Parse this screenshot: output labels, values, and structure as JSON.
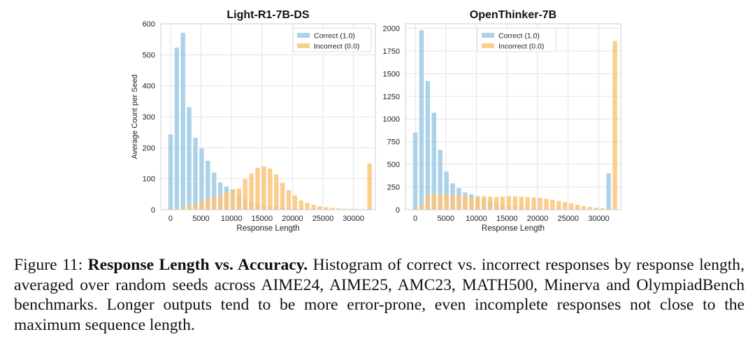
{
  "colors": {
    "correct": "#9ecae6",
    "incorrect": "#fbc57a",
    "grid": "#e3e3e3",
    "axis": "#666666",
    "text": "#222222"
  },
  "chart_data": [
    {
      "type": "bar",
      "title": "Light-R1-7B-DS",
      "xlabel": "Response Length",
      "ylabel": "Average Count per Seed",
      "xlim": [
        -1600,
        33600
      ],
      "ylim": [
        0,
        600
      ],
      "xticks": [
        0,
        5000,
        10000,
        15000,
        20000,
        25000,
        30000
      ],
      "xtick_labels": [
        "0",
        "5000",
        "10000",
        "15000",
        "20000",
        "25000",
        "30000"
      ],
      "yticks": [
        0,
        100,
        200,
        300,
        400,
        500,
        600
      ],
      "ytick_labels": [
        "0",
        "100",
        "200",
        "300",
        "400",
        "500",
        "600"
      ],
      "grid": true,
      "legend_position": "top-right",
      "bin_width": 1020,
      "series": [
        {
          "name": "Correct (1.0)",
          "color_key": "correct",
          "x": [
            0,
            1020,
            2040,
            3060,
            4080,
            5100,
            6120,
            7140,
            8160,
            9180,
            10200,
            11220,
            12240,
            13260,
            14280,
            15300,
            16320,
            17340,
            18360,
            19380,
            20400,
            21420,
            22440,
            23460,
            24480,
            25500,
            26520,
            27540,
            28560,
            29580,
            30600,
            31620,
            32640
          ],
          "values": [
            243,
            523,
            571,
            331,
            232,
            198,
            158,
            120,
            88,
            75,
            66,
            51,
            34,
            25,
            19,
            14,
            13,
            10,
            8,
            6,
            5,
            4,
            3,
            2,
            2,
            1,
            1,
            1,
            1,
            0,
            0,
            0,
            1
          ]
        },
        {
          "name": "Incorrect (0.0)",
          "color_key": "incorrect",
          "x": [
            0,
            1020,
            2040,
            3060,
            4080,
            5100,
            6120,
            7140,
            8160,
            9180,
            10200,
            11220,
            12240,
            13260,
            14280,
            15300,
            16320,
            17340,
            18360,
            19380,
            20400,
            21420,
            22440,
            23460,
            24480,
            25500,
            26520,
            27540,
            28560,
            29580,
            30600,
            31620,
            32640
          ],
          "values": [
            0,
            0,
            8,
            14,
            19,
            26,
            36,
            42,
            47,
            58,
            64,
            68,
            98,
            117,
            135,
            140,
            133,
            114,
            87,
            63,
            46,
            30,
            22,
            16,
            11,
            8,
            6,
            4,
            3,
            2,
            2,
            1,
            149
          ]
        }
      ]
    },
    {
      "type": "bar",
      "title": "OpenThinker-7B",
      "xlabel": "Response Length",
      "ylabel": "",
      "xlim": [
        -1600,
        33600
      ],
      "ylim": [
        0,
        2050
      ],
      "xticks": [
        0,
        5000,
        10000,
        15000,
        20000,
        25000,
        30000
      ],
      "xtick_labels": [
        "0",
        "5000",
        "10000",
        "15000",
        "20000",
        "25000",
        "30000"
      ],
      "yticks": [
        0,
        250,
        500,
        750,
        1000,
        1250,
        1500,
        1750,
        2000
      ],
      "ytick_labels": [
        "0",
        "250",
        "500",
        "750",
        "1000",
        "1250",
        "1500",
        "1750",
        "2000"
      ],
      "grid": true,
      "legend_position": "top-left",
      "bin_width": 1020,
      "series": [
        {
          "name": "Correct (1.0)",
          "color_key": "correct",
          "x": [
            0,
            1020,
            2040,
            3060,
            4080,
            5100,
            6120,
            7140,
            8160,
            9180,
            10200,
            11220,
            12240,
            13260,
            14280,
            15300,
            16320,
            17340,
            18360,
            19380,
            20400,
            21420,
            22440,
            23460,
            24480,
            25500,
            26520,
            27540,
            28560,
            29580,
            30600,
            31620,
            32640
          ],
          "values": [
            850,
            1980,
            1420,
            1070,
            660,
            420,
            290,
            240,
            190,
            170,
            150,
            120,
            95,
            75,
            60,
            45,
            38,
            30,
            25,
            20,
            15,
            12,
            10,
            8,
            6,
            5,
            4,
            3,
            2,
            2,
            1,
            400,
            0
          ]
        },
        {
          "name": "Incorrect (0.0)",
          "color_key": "incorrect",
          "x": [
            0,
            1020,
            2040,
            3060,
            4080,
            5100,
            6120,
            7140,
            8160,
            9180,
            10200,
            11220,
            12240,
            13260,
            14280,
            15300,
            16320,
            17340,
            18360,
            19380,
            20400,
            21420,
            22440,
            23460,
            24480,
            25500,
            26520,
            27540,
            28560,
            29580,
            30600,
            31620,
            32640
          ],
          "values": [
            0,
            60,
            165,
            170,
            175,
            170,
            165,
            160,
            150,
            140,
            145,
            150,
            145,
            140,
            145,
            150,
            148,
            145,
            140,
            135,
            130,
            120,
            110,
            95,
            85,
            70,
            55,
            40,
            30,
            20,
            15,
            10,
            1860
          ]
        }
      ]
    }
  ],
  "caption": {
    "prefix": "Figure 11: ",
    "bold": "Response Length vs. Accuracy.",
    "text": " Histogram of correct vs. incorrect responses by response length, averaged over random seeds across AIME24, AIME25, AMC23, MATH500, Minerva and OlympiadBench benchmarks. Longer outputs tend to be more error-prone, even incomplete responses not close to the maximum sequence length."
  }
}
